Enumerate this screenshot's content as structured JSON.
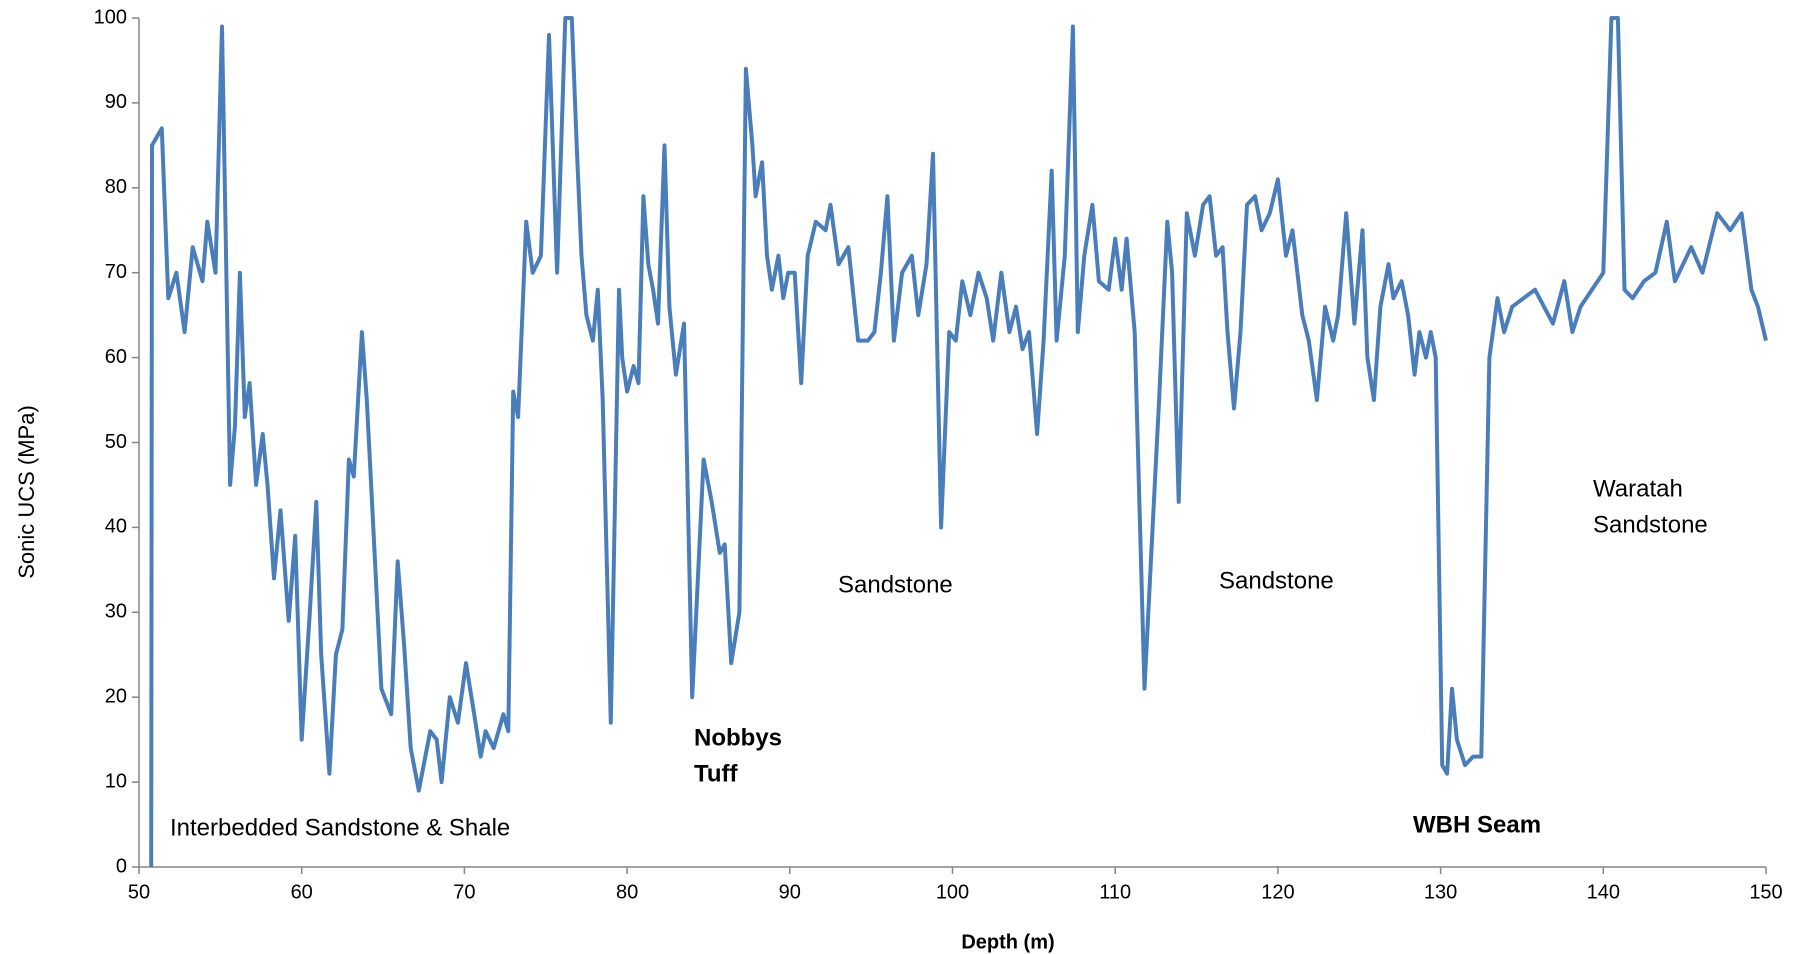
{
  "chart_data": {
    "type": "line",
    "xlabel": "Depth (m)",
    "ylabel": "Sonic UCS  (MPa)",
    "xlim": [
      50,
      150
    ],
    "ylim": [
      0,
      100
    ],
    "xticks": [
      50,
      60,
      70,
      80,
      90,
      100,
      110,
      120,
      130,
      140,
      150
    ],
    "yticks": [
      0,
      10,
      20,
      30,
      40,
      50,
      60,
      70,
      80,
      90,
      100
    ],
    "grid": false,
    "series": [
      {
        "name": "Sonic UCS",
        "color": "#4a7ebb",
        "x": [
          50.75,
          50.8,
          51.4,
          51.8,
          52.3,
          52.8,
          53.3,
          53.9,
          54.2,
          54.7,
          55.1,
          55.6,
          55.9,
          56.2,
          56.5,
          56.8,
          57.2,
          57.6,
          57.9,
          58.3,
          58.7,
          59.2,
          59.6,
          60.0,
          60.5,
          60.9,
          61.2,
          61.7,
          62.1,
          62.5,
          62.9,
          63.2,
          63.7,
          64.0,
          64.4,
          64.9,
          65.5,
          65.9,
          66.3,
          66.7,
          67.2,
          67.9,
          68.3,
          68.6,
          69.1,
          69.6,
          70.1,
          70.6,
          71.0,
          71.3,
          71.8,
          72.4,
          72.7,
          73.0,
          73.3,
          73.8,
          74.2,
          74.7,
          75.2,
          75.7,
          76.2,
          76.6,
          76.9,
          77.2,
          77.5,
          77.9,
          78.2,
          78.5,
          79.0,
          79.5,
          79.7,
          80.0,
          80.4,
          80.7,
          81.0,
          81.3,
          81.6,
          81.9,
          82.3,
          82.6,
          83.0,
          83.5,
          84.0,
          84.7,
          85.2,
          85.7,
          86.0,
          86.4,
          86.9,
          87.3,
          87.7,
          87.9,
          88.3,
          88.6,
          88.9,
          89.3,
          89.6,
          89.9,
          90.3,
          90.7,
          91.1,
          91.6,
          92.2,
          92.5,
          93.0,
          93.6,
          94.2,
          94.8,
          95.2,
          95.6,
          96.0,
          96.4,
          96.9,
          97.5,
          97.9,
          98.4,
          98.8,
          99.3,
          99.8,
          100.2,
          100.6,
          101.1,
          101.6,
          102.1,
          102.5,
          103.0,
          103.5,
          103.9,
          104.3,
          104.7,
          105.2,
          105.6,
          106.1,
          106.4,
          106.9,
          107.4,
          107.7,
          108.1,
          108.6,
          109.0,
          109.6,
          110.0,
          110.4,
          110.7,
          111.2,
          111.8,
          112.3,
          112.7,
          113.2,
          113.5,
          113.9,
          114.4,
          114.9,
          115.4,
          115.8,
          116.2,
          116.6,
          116.9,
          117.3,
          117.7,
          118.1,
          118.6,
          119.0,
          119.5,
          120.0,
          120.5,
          120.9,
          121.5,
          121.9,
          122.4,
          122.9,
          123.4,
          123.7,
          124.2,
          124.7,
          125.2,
          125.5,
          125.9,
          126.3,
          126.8,
          127.1,
          127.6,
          128.0,
          128.4,
          128.7,
          129.1,
          129.4,
          129.7,
          130.1,
          130.4,
          130.7,
          131.0,
          131.5,
          132.0,
          132.5,
          133.0,
          133.5,
          133.9,
          134.4,
          135.1,
          135.8,
          136.9,
          137.6,
          138.1,
          138.6,
          139.3,
          140.0,
          140.5,
          140.9,
          141.3,
          141.8,
          142.5,
          143.2,
          143.9,
          144.4,
          145.4,
          146.1,
          147.0,
          147.8,
          148.5,
          149.1,
          149.5,
          150.0
        ],
        "values": [
          0,
          85,
          87,
          67,
          70,
          63,
          73,
          69,
          76,
          70,
          99,
          45,
          52,
          70,
          53,
          57,
          45,
          51,
          45,
          34,
          42,
          29,
          39,
          15,
          30,
          43,
          25,
          11,
          25,
          28,
          48,
          46,
          63,
          55,
          40,
          21,
          18,
          36,
          26,
          14,
          9,
          16,
          15,
          10,
          20,
          17,
          24,
          18,
          13,
          16,
          14,
          18,
          16,
          56,
          53,
          76,
          70,
          72,
          98,
          70,
          100,
          100,
          85,
          72,
          65,
          62,
          68,
          55,
          17,
          68,
          60,
          56,
          59,
          57,
          79,
          71,
          68,
          64,
          85,
          66,
          58,
          64,
          20,
          48,
          43,
          37,
          38,
          24,
          30,
          94,
          85,
          79,
          83,
          72,
          68,
          72,
          67,
          70,
          70,
          57,
          72,
          76,
          75,
          78,
          71,
          73,
          62,
          62,
          63,
          70,
          79,
          62,
          70,
          72,
          65,
          71,
          84,
          40,
          63,
          62,
          69,
          65,
          70,
          67,
          62,
          70,
          63,
          66,
          61,
          63,
          51,
          62,
          82,
          62,
          72,
          99,
          63,
          72,
          78,
          69,
          68,
          74,
          68,
          74,
          63,
          21,
          40,
          55,
          76,
          70,
          43,
          77,
          72,
          78,
          79,
          72,
          73,
          63,
          54,
          63,
          78,
          79,
          75,
          77,
          81,
          72,
          75,
          65,
          62,
          55,
          66,
          62,
          65,
          77,
          64,
          75,
          60,
          55,
          66,
          71,
          67,
          69,
          65,
          58,
          63,
          60,
          63,
          60,
          12,
          11,
          21,
          15,
          12,
          13,
          13,
          60,
          67,
          63,
          66,
          67,
          68,
          64,
          69,
          63,
          66,
          68,
          70,
          100,
          100,
          68,
          67,
          69,
          70,
          76,
          69,
          73,
          70,
          77,
          75,
          77,
          68,
          66,
          62
        ]
      }
    ],
    "annotations": [
      {
        "lines": [
          "Interbedded Sandstone & Shale"
        ],
        "bold": false
      },
      {
        "lines": [
          "Nobbys",
          "Tuff"
        ],
        "bold": true
      },
      {
        "lines": [
          "Sandstone"
        ],
        "bold": false
      },
      {
        "lines": [
          "Sandstone"
        ],
        "bold": false
      },
      {
        "lines": [
          "WBH Seam"
        ],
        "bold": true
      },
      {
        "lines": [
          "Waratah",
          "Sandstone"
        ],
        "bold": false
      }
    ]
  }
}
